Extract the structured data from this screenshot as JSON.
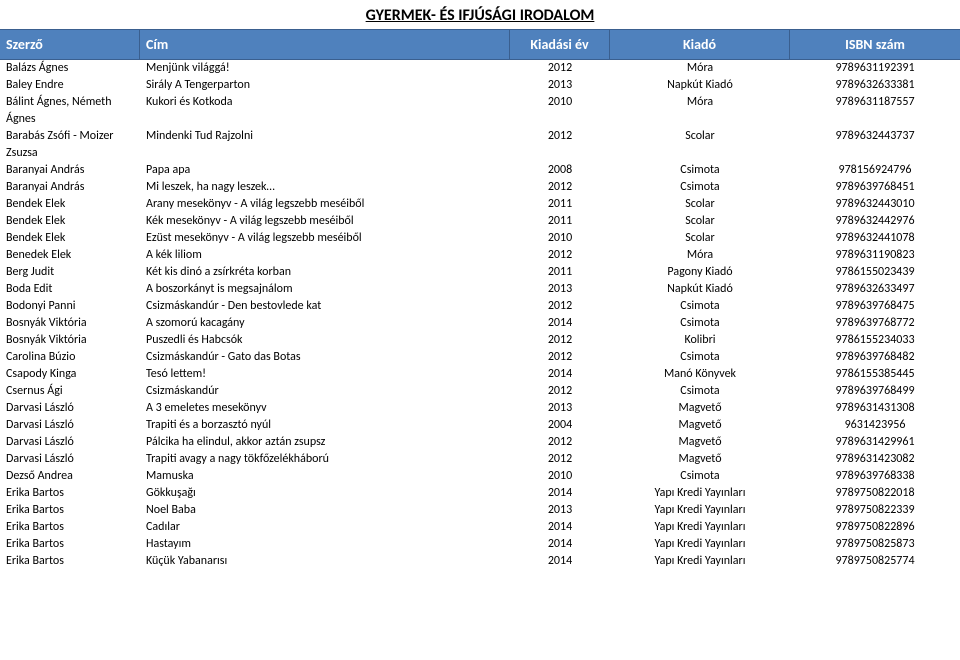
{
  "page_title": "GYERMEK- ÉS IFJÚSÁGI IRODALOM",
  "columns": {
    "author": "Szerző",
    "title": "Cím",
    "year": "Kiadási év",
    "publisher": "Kiadó",
    "isbn": "ISBN szám"
  },
  "rows": [
    {
      "author": "Balázs Ágnes",
      "title": "Menjünk világgá!",
      "year": "2012",
      "publisher": "Móra",
      "isbn": "9789631192391"
    },
    {
      "author": "Baley Endre",
      "title": "Sirály A Tengerparton",
      "year": "2013",
      "publisher": "Napkút Kiadó",
      "isbn": "9789632633381"
    },
    {
      "author": "Bálint Ágnes, Németh",
      "title": "Kukori és Kotkoda",
      "year": "2010",
      "publisher": "Móra",
      "isbn": "9789631187557"
    },
    {
      "author": "Ágnes",
      "title": "",
      "year": "",
      "publisher": "",
      "isbn": ""
    },
    {
      "author": "Barabás Zsófi - Moizer",
      "title": "Mindenki Tud Rajzolni",
      "year": "2012",
      "publisher": "Scolar",
      "isbn": "9789632443737"
    },
    {
      "author": "Zsuzsa",
      "title": "",
      "year": "",
      "publisher": "",
      "isbn": ""
    },
    {
      "author": "Baranyai András",
      "title": "Papa apa",
      "year": "2008",
      "publisher": "Csimota",
      "isbn": "978156924796"
    },
    {
      "author": "Baranyai András",
      "title": "Mi leszek, ha nagy leszek…",
      "year": "2012",
      "publisher": "Csimota",
      "isbn": "9789639768451"
    },
    {
      "author": "Bendek Elek",
      "title": "Arany mesekönyv - A világ legszebb meséiből",
      "year": "2011",
      "publisher": "Scolar",
      "isbn": "9789632443010"
    },
    {
      "author": "Bendek Elek",
      "title": "Kék mesekönyv - A világ legszebb meséiből",
      "year": "2011",
      "publisher": "Scolar",
      "isbn": "9789632442976"
    },
    {
      "author": "Bendek Elek",
      "title": "Ezüst mesekönyv - A világ legszebb meséiből",
      "year": "2010",
      "publisher": "Scolar",
      "isbn": "9789632441078"
    },
    {
      "author": "Benedek Elek",
      "title": "A kék liliom",
      "year": "2012",
      "publisher": "Móra",
      "isbn": "9789631190823"
    },
    {
      "author": "Berg Judit",
      "title": "Két kis dinó a zsírkréta korban",
      "year": "2011",
      "publisher": "Pagony Kiadó",
      "isbn": "9786155023439"
    },
    {
      "author": "Boda Edit",
      "title": "A boszorkányt is megsajnálom",
      "year": "2013",
      "publisher": "Napkút Kiadó",
      "isbn": "9789632633497"
    },
    {
      "author": "Bodonyi Panni",
      "title": "Csizmáskandúr - Den bestovlede kat",
      "year": "2012",
      "publisher": "Csimota",
      "isbn": "9789639768475"
    },
    {
      "author": "Bosnyák Viktória",
      "title": "A szomorú kacagány",
      "year": "2014",
      "publisher": "Csimota",
      "isbn": "9789639768772"
    },
    {
      "author": "Bosnyák Viktória",
      "title": "Puszedli és Habcsók",
      "year": "2012",
      "publisher": "Kolibri",
      "isbn": "9786155234033"
    },
    {
      "author": "Carolina Búzio",
      "title": "Csizmáskandúr - Gato das Botas",
      "year": "2012",
      "publisher": "Csimota",
      "isbn": "9789639768482"
    },
    {
      "author": "Csapody Kinga",
      "title": "Tesó lettem!",
      "year": "2014",
      "publisher": "Manó Könyvek",
      "isbn": "9786155385445"
    },
    {
      "author": "Csernus Ági",
      "title": "Csizmáskandúr",
      "year": "2012",
      "publisher": "Csimota",
      "isbn": "9789639768499"
    },
    {
      "author": "Darvasi László",
      "title": "A 3 emeletes mesekönyv",
      "year": "2013",
      "publisher": "Magvető",
      "isbn": "9789631431308"
    },
    {
      "author": "Darvasi László",
      "title": "Trapiti és a borzasztó nyúl",
      "year": "2004",
      "publisher": "Magvető",
      "isbn": "9631423956"
    },
    {
      "author": "Darvasi László",
      "title": "Pálcika ha elindul, akkor aztán zsupsz",
      "year": "2012",
      "publisher": "Magvető",
      "isbn": "9789631429961"
    },
    {
      "author": "Darvasi László",
      "title": "Trapiti avagy a nagy tökfőzelékháború",
      "year": "2012",
      "publisher": "Magvető",
      "isbn": "9789631423082"
    },
    {
      "author": "Dezső Andrea",
      "title": "Mamuska",
      "year": "2010",
      "publisher": "Csimota",
      "isbn": "9789639768338"
    },
    {
      "author": "Erika Bartos",
      "title": "Gökkuşağı",
      "year": "2014",
      "publisher": "Yapı Kredi Yayınları",
      "isbn": "9789750822018"
    },
    {
      "author": "Erika Bartos",
      "title": "Noel Baba",
      "year": "2013",
      "publisher": "Yapı Kredi Yayınları",
      "isbn": "9789750822339"
    },
    {
      "author": "Erika Bartos",
      "title": "Cadılar",
      "year": "2014",
      "publisher": "Yapı Kredi Yayınları",
      "isbn": "9789750822896"
    },
    {
      "author": "Erika Bartos",
      "title": "Hastayım",
      "year": "2014",
      "publisher": "Yapı Kredi Yayınları",
      "isbn": "9789750825873"
    },
    {
      "author": "Erika Bartos",
      "title": "Küçük Yabanarısı",
      "year": "2014",
      "publisher": "Yapı Kredi Yayınları",
      "isbn": "9789750825774"
    }
  ]
}
